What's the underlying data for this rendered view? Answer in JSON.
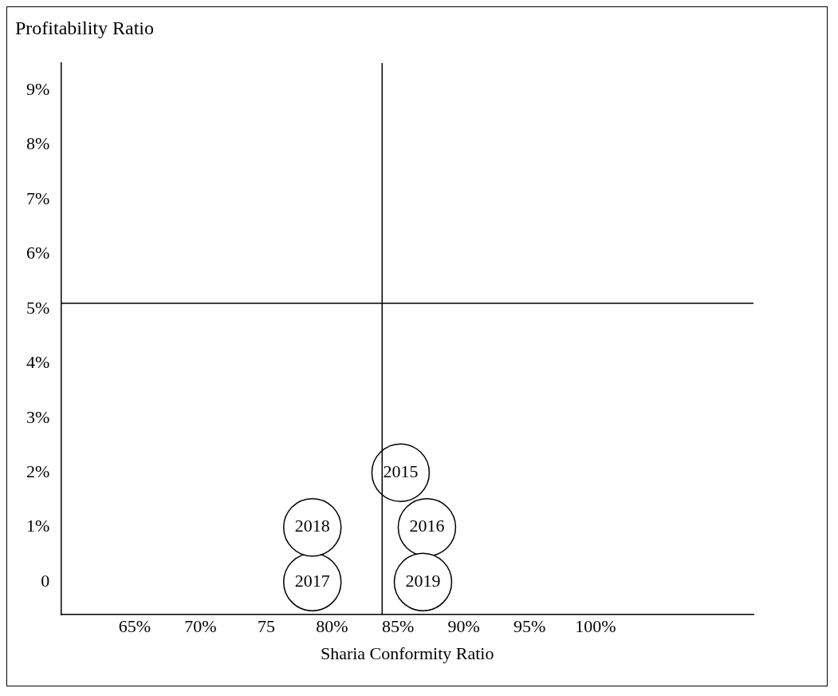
{
  "chart_data": {
    "type": "scatter",
    "ylabel": "Profitability Ratio",
    "xlabel": "Sharia Conformity Ratio",
    "x": [
      85.2,
      87.2,
      78.5,
      78.5,
      86.9
    ],
    "series": [
      {
        "color": "#000000",
        "values": [
          2,
          1,
          0,
          1,
          0
        ]
      }
    ],
    "annotations": [
      {
        "text": "2015",
        "x": 85.2,
        "y": 2
      },
      {
        "text": "2016",
        "x": 87.2,
        "y": 1
      },
      {
        "text": "2017",
        "x": 78.5,
        "y": 0
      },
      {
        "text": "2018",
        "x": 78.5,
        "y": 1
      },
      {
        "text": "2019",
        "x": 86.9,
        "y": 0
      }
    ],
    "xlim": [
      59.4,
      112
    ],
    "ylim": [
      -0.6,
      9.5
    ],
    "xticks": [
      {
        "value": 65,
        "label": "65%"
      },
      {
        "value": 70,
        "label": "70%"
      },
      75,
      {
        "value": 80,
        "label": "80%"
      },
      {
        "value": 85,
        "label": "85%"
      },
      {
        "value": 90,
        "label": "90%"
      },
      {
        "value": 95,
        "label": "95%"
      },
      {
        "value": 100,
        "label": "100%"
      }
    ],
    "yticks": [
      0,
      {
        "value": 1,
        "label": "1%"
      },
      {
        "value": 2,
        "label": "2%"
      },
      {
        "value": 3,
        "label": "3%"
      },
      {
        "value": 4,
        "label": "4%"
      },
      {
        "value": 5,
        "label": "5%"
      },
      {
        "value": 6,
        "label": "6%"
      },
      {
        "value": 7,
        "label": "7%"
      },
      {
        "value": 8,
        "label": "8%"
      },
      {
        "value": 9,
        "label": "9%"
      }
    ],
    "ref_lines": [
      {
        "axis": "y",
        "value": 5.1,
        "color": "#000000"
      },
      {
        "axis": "x",
        "value": 83.8,
        "color": "#000000"
      }
    ],
    "marker": "circle",
    "grid": false,
    "legend": false
  }
}
